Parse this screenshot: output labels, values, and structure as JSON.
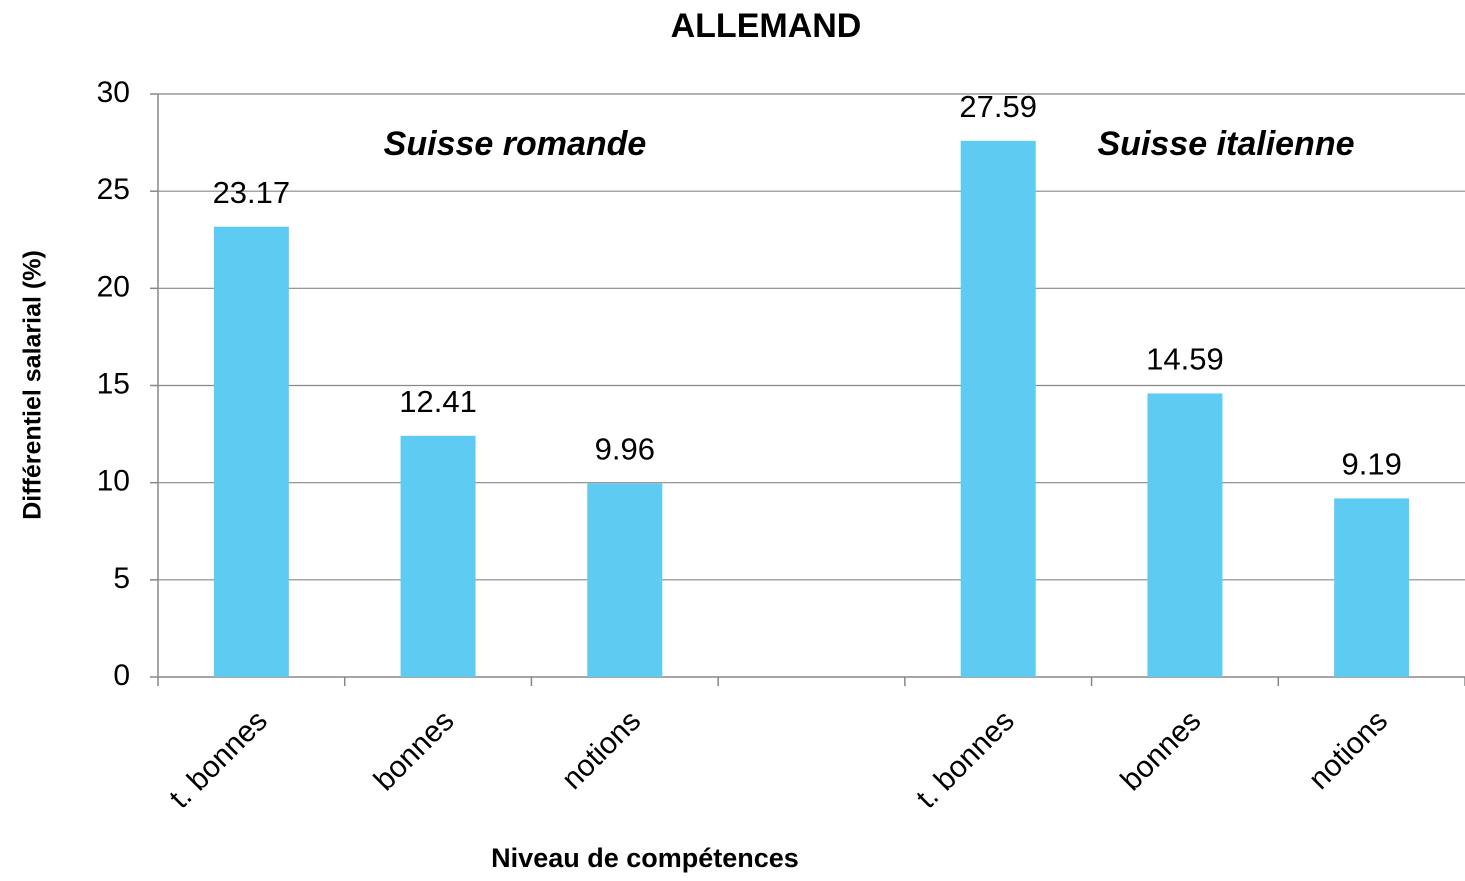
{
  "chart_data": {
    "type": "bar",
    "title": "ALLEMAND",
    "x_label": "Niveau de compétences",
    "y_label": "Différentiel salarial (%)",
    "annotations": [
      "Suisse romande",
      "Suisse italienne"
    ],
    "categories": [
      "t. bonnes",
      "bonnes",
      "notions",
      null,
      "t. bonnes",
      "bonnes",
      "notions"
    ],
    "values": [
      23.17,
      12.41,
      9.96,
      null,
      27.59,
      14.59,
      9.19
    ],
    "color": "#5ecbf2",
    "title_color": "#4f6fc6",
    "ylim": [
      0,
      30
    ],
    "yticks": [
      0,
      5,
      10,
      15,
      20,
      25,
      30
    ],
    "grid": true
  }
}
